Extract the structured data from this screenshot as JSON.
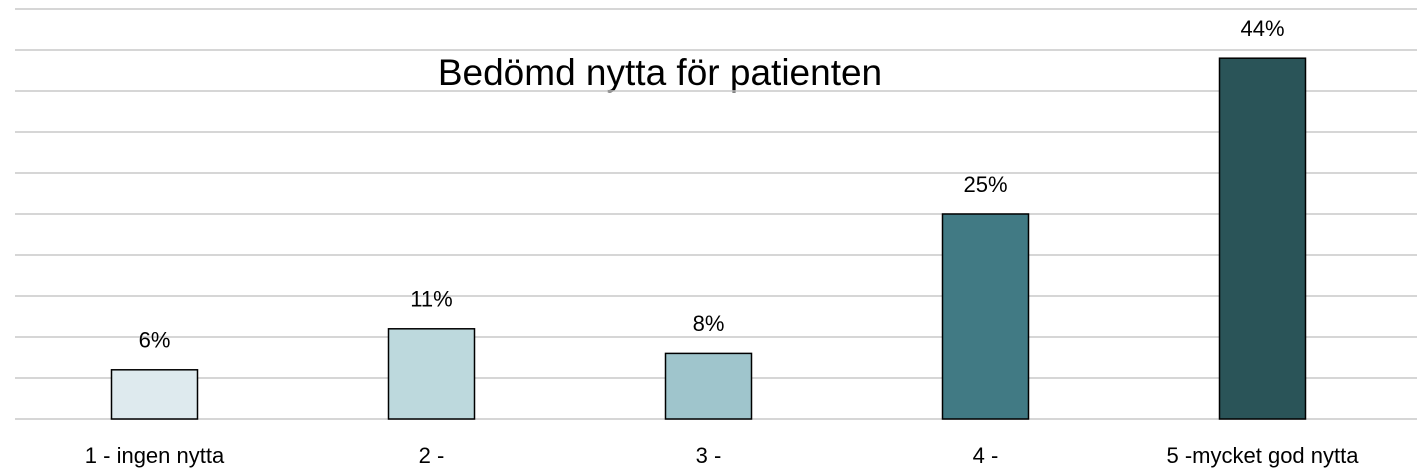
{
  "chart_data": {
    "type": "bar",
    "title": "Bedömd nytta för patienten",
    "categories": [
      "1 - ingen nytta",
      "2 -",
      "3 -",
      "4 -",
      "5 -mycket god nytta"
    ],
    "values": [
      6,
      11,
      8,
      25,
      44
    ],
    "value_labels": [
      "6%",
      "11%",
      "8%",
      "25%",
      "44%"
    ],
    "colors": [
      "#deeaee",
      "#bdd9dd",
      "#9fc5cc",
      "#417a84",
      "#2a5458"
    ],
    "ylim": [
      0,
      50
    ],
    "yticks": [
      0,
      5,
      10,
      15,
      20,
      25,
      30,
      35,
      40,
      45,
      50
    ],
    "grid": true
  }
}
